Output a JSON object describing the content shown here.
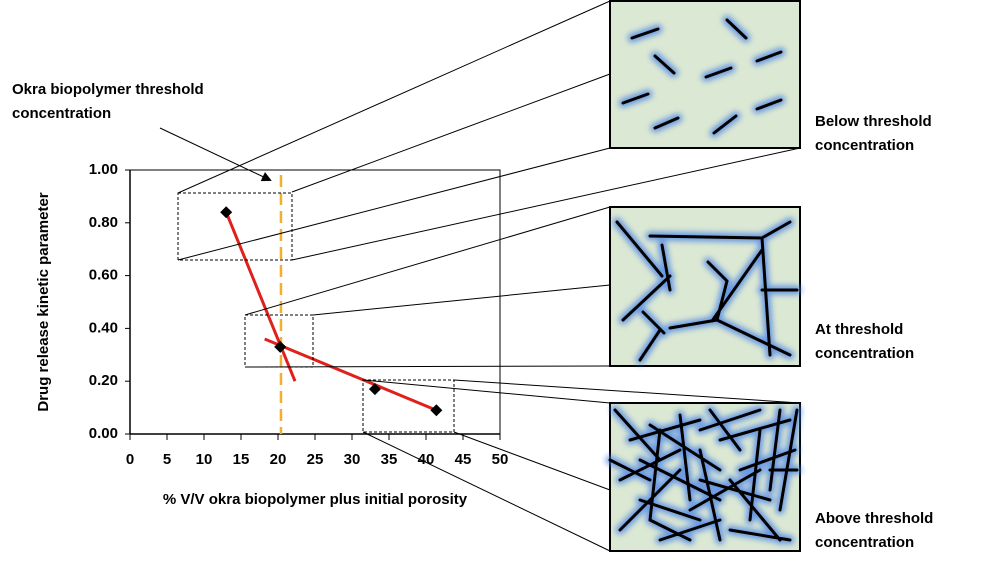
{
  "chart_data": {
    "type": "scatter",
    "x_label": "% V/V okra biopolymer plus initial porosity",
    "y_label": "Drug release kinetic parameter",
    "annotation": [
      "Okra biopolymer threshold",
      "concentration"
    ],
    "series": [
      {
        "color": "#000000",
        "x": [
          13,
          20.3,
          33.1,
          41.4
        ],
        "values": [
          0.84,
          0.33,
          0.17,
          0.09
        ]
      }
    ],
    "trend_lines": [
      {
        "color": "#e0201c",
        "x": [
          13,
          22.3
        ],
        "values": [
          0.84,
          0.2
        ]
      },
      {
        "color": "#e0201c",
        "x": [
          18.2,
          41.4
        ],
        "values": [
          0.36,
          0.09
        ]
      }
    ],
    "threshold": {
      "x": 20.4,
      "color": "#f0b030"
    },
    "xlim": [
      0,
      50
    ],
    "xticks": [
      0,
      5,
      10,
      15,
      20,
      25,
      30,
      35,
      40,
      45,
      50
    ],
    "ylim": [
      0,
      1
    ],
    "yticks": [
      {
        "value": 0,
        "label": "0.00"
      },
      {
        "value": 0.2,
        "label": "0.20"
      },
      {
        "value": 0.4,
        "label": "0.40"
      },
      {
        "value": 0.6,
        "label": "0.60"
      },
      {
        "value": 0.8,
        "label": "0.80"
      },
      {
        "value": 1,
        "label": "1.00"
      }
    ]
  },
  "panels": [
    {
      "label": [
        "Below threshold",
        "concentration"
      ]
    },
    {
      "label": [
        "At threshold",
        "concentration"
      ]
    },
    {
      "label": [
        "Above threshold",
        "concentration"
      ]
    }
  ]
}
